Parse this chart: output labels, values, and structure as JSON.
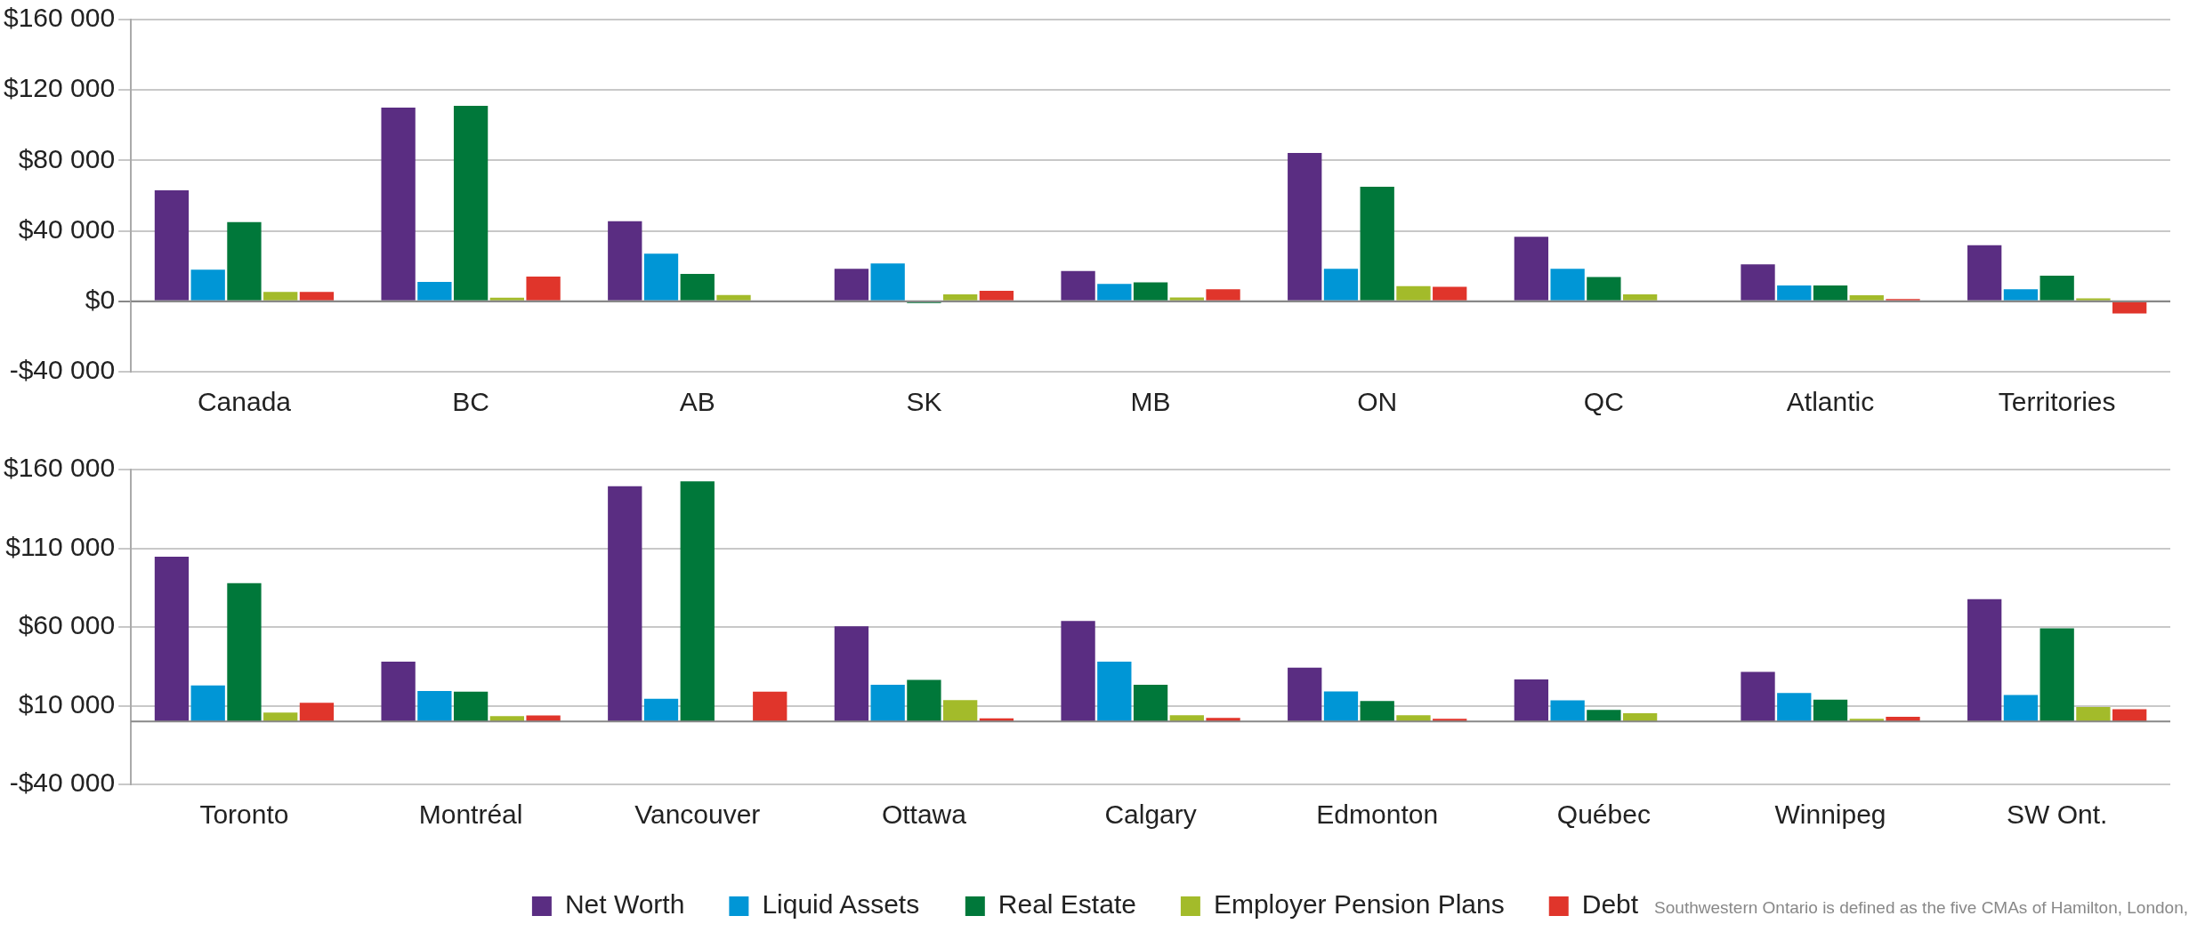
{
  "chart_data": [
    {
      "type": "bar",
      "categories": [
        "Canada",
        "BC",
        "AB",
        "SK",
        "MB",
        "ON",
        "QC",
        "Atlantic",
        "Territories"
      ],
      "series": [
        {
          "color": "#5a2d82",
          "values": [
            63000,
            110000,
            45500,
            18500,
            17200,
            84300,
            36600,
            21000,
            31800
          ]
        },
        {
          "color": "#0096d6",
          "values": [
            18000,
            11000,
            27000,
            21500,
            9900,
            18500,
            18500,
            9000,
            6900
          ]
        },
        {
          "color": "#00783a",
          "values": [
            45000,
            111000,
            15500,
            -1000,
            10800,
            65000,
            13800,
            9000,
            14600
          ]
        },
        {
          "color": "#a3bb2a",
          "values": [
            5300,
            2000,
            3500,
            4000,
            2200,
            8600,
            3900,
            3400,
            1700
          ]
        },
        {
          "color": "#e0352b",
          "values": [
            5300,
            14000,
            0,
            6000,
            6900,
            8200,
            0,
            1300,
            -6900
          ]
        }
      ],
      "ylim": [
        -40000,
        160000
      ],
      "yticks": [
        {
          "value": -40000,
          "label": "-$40 000"
        },
        {
          "value": 0,
          "label": "$0"
        },
        {
          "value": 40000,
          "label": "$40 000"
        },
        {
          "value": 80000,
          "label": "$80 000"
        },
        {
          "value": 120000,
          "label": "$120 000"
        },
        {
          "value": 160000,
          "label": "$160 000"
        }
      ],
      "grid": "y",
      "legend": false
    },
    {
      "type": "bar",
      "categories": [
        "Toronto",
        "Montréal",
        "Vancouver",
        "Ottawa",
        "Calgary",
        "Edmonton",
        "Québec",
        "Winnipeg",
        "SW Ont."
      ],
      "series": [
        {
          "name": "Net Worth",
          "color": "#5a2d82",
          "values": [
            104700,
            37900,
            149400,
            60400,
            63800,
            34100,
            26700,
            31500,
            77600
          ]
        },
        {
          "name": "Liquid Assets",
          "color": "#0096d6",
          "values": [
            22800,
            19300,
            14400,
            23300,
            37900,
            19000,
            13400,
            18100,
            16800
          ]
        },
        {
          "name": "Real Estate",
          "color": "#00783a",
          "values": [
            87800,
            18900,
            152500,
            26400,
            23300,
            12900,
            7300,
            13800,
            59100
          ]
        },
        {
          "name": "Employer Pension Plans",
          "color": "#a3bb2a",
          "values": [
            5600,
            3400,
            0,
            13500,
            3900,
            3900,
            5200,
            1700,
            9100
          ]
        },
        {
          "name": "Debt",
          "color": "#e0352b",
          "values": [
            11800,
            3800,
            18900,
            2000,
            2200,
            1700,
            0,
            3000,
            7800
          ]
        }
      ],
      "ylim": [
        -40000,
        160000
      ],
      "yticks": [
        {
          "value": -40000,
          "label": "-$40 000"
        },
        {
          "value": 10000,
          "label": "$10 000"
        },
        {
          "value": 60000,
          "label": "$60 000"
        },
        {
          "value": 110000,
          "label": "$110 000"
        },
        {
          "value": 160000,
          "label": "$160 000"
        }
      ],
      "grid": "y",
      "legend": "bottom",
      "annotations": [
        "Southwestern Ontario is defined as the five CMAs of Hamilton, London,"
      ]
    }
  ]
}
